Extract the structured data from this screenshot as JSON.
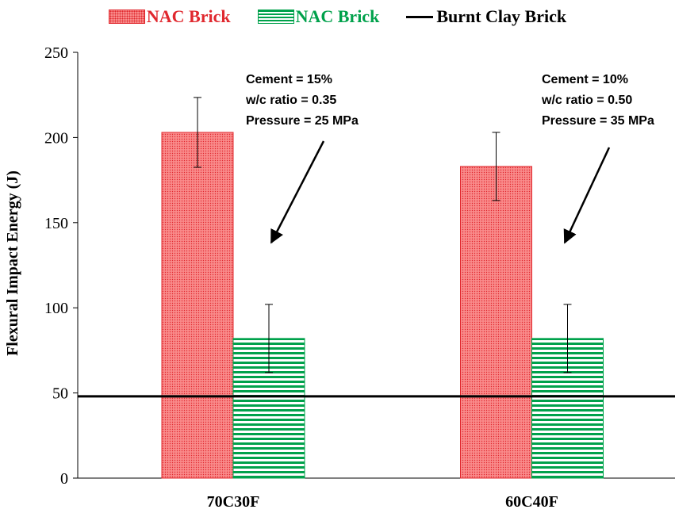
{
  "legend": {
    "item1": "NAC Brick",
    "item2": "NAC Brick",
    "item3": "Burnt Clay Brick"
  },
  "annotations": [
    {
      "lines": [
        "Cement = 15%",
        "w/c ratio = 0.35",
        "Pressure  = 25 MPa"
      ]
    },
    {
      "lines": [
        "Cement = 10%",
        "w/c ratio = 0.50",
        "Pressure  = 35 MPa"
      ]
    }
  ],
  "colors": {
    "red_fill": "#f98b8b",
    "red_edge": "#e0282e",
    "green": "#00a14b",
    "reference": "#000000"
  },
  "chart_data": {
    "type": "bar",
    "categories": [
      "70C30F",
      "60C40F"
    ],
    "series": [
      {
        "name": "NAC Brick",
        "values": [
          203,
          183
        ],
        "error": [
          20.5,
          20
        ],
        "color": "#f98b8b",
        "pattern": "dots"
      },
      {
        "name": "NAC Brick",
        "values": [
          82,
          82
        ],
        "error": [
          20,
          20
        ],
        "color": "#00a14b",
        "pattern": "horizontal-stripes"
      }
    ],
    "reference_line": {
      "name": "Burnt Clay Brick",
      "value": 48
    },
    "xlabel": "",
    "ylabel": "Flexural Impact Energy (J)",
    "ylim": [
      0,
      250
    ],
    "yticks": [
      0,
      50,
      100,
      150,
      200,
      250
    ],
    "grid": false,
    "legend_position": "top"
  }
}
